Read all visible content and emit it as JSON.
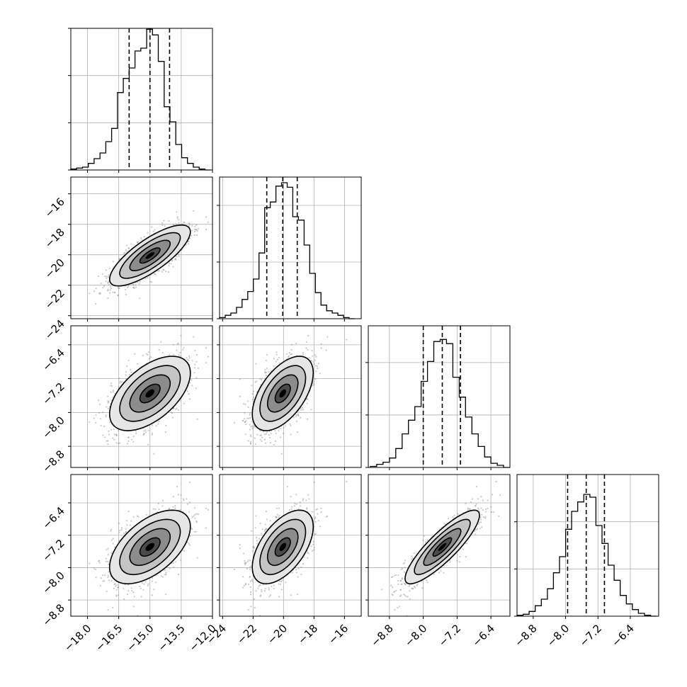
{
  "chart_data": {
    "type": "corner",
    "title": "",
    "grid": true,
    "parameters": [
      {
        "range": [
          -18.8,
          -12.0
        ],
        "ticks": [
          -18.0,
          -16.5,
          -15.0,
          -13.5,
          -12.0
        ],
        "tick_labels": [
          "−18.0",
          "−16.5",
          "−15.0",
          "−13.5",
          "−12.0"
        ],
        "quantiles": [
          -16.0,
          -15.0,
          -14.06
        ],
        "hist": {
          "bin_edges": [
            -18.8,
            -18.52,
            -18.24,
            -17.96,
            -17.68,
            -17.4,
            -17.12,
            -16.84,
            -16.56,
            -16.28,
            -16.0,
            -15.72,
            -15.44,
            -15.16,
            -14.88,
            -14.6,
            -14.32,
            -14.04,
            -13.76,
            -13.48,
            -13.2,
            -12.92,
            -12.64,
            -12.36,
            -12.08
          ],
          "counts": [
            1,
            2,
            3,
            7,
            12,
            18,
            30,
            44,
            82,
            97,
            108,
            126,
            129,
            149,
            143,
            115,
            67,
            51,
            27,
            13,
            7,
            3,
            1,
            0
          ],
          "ymax": 150,
          "yticks": [
            0,
            50,
            100,
            150
          ]
        }
      },
      {
        "range": [
          -24.2,
          -14.9
        ],
        "ticks": [
          -24,
          -22,
          -20,
          -18,
          -16
        ],
        "tick_labels": [
          "−24",
          "−22",
          "−20",
          "−18",
          "−16"
        ],
        "quantiles": [
          -21.1,
          -20.05,
          -19.1
        ],
        "hist": {
          "bin_edges": [
            -24.2,
            -23.83,
            -23.46,
            -23.09,
            -22.72,
            -22.35,
            -21.98,
            -21.61,
            -21.24,
            -20.87,
            -20.5,
            -20.13,
            -19.76,
            -19.39,
            -19.02,
            -18.65,
            -18.28,
            -17.91,
            -17.54,
            -17.17,
            -16.8,
            -16.43,
            -16.06,
            -15.69,
            -15.32
          ],
          "counts": [
            1,
            3,
            5,
            10,
            17,
            24,
            35,
            58,
            98,
            103,
            117,
            120,
            116,
            90,
            87,
            65,
            40,
            23,
            12,
            7,
            5,
            3,
            1,
            0
          ],
          "ymax": 125,
          "yticks": [
            0,
            50,
            100
          ]
        }
      },
      {
        "range": [
          -9.3,
          -5.95
        ],
        "ticks": [
          -8.8,
          -8.0,
          -7.2,
          -6.4
        ],
        "tick_labels": [
          "−8.8",
          "−8.0",
          "−7.2",
          "−6.4"
        ],
        "quantiles": [
          -8.0,
          -7.55,
          -7.12
        ],
        "hist": {
          "bin_edges": [
            -9.25,
            -9.1,
            -8.95,
            -8.8,
            -8.65,
            -8.5,
            -8.35,
            -8.2,
            -8.05,
            -7.9,
            -7.75,
            -7.6,
            -7.45,
            -7.3,
            -7.15,
            -7.0,
            -6.85,
            -6.7,
            -6.55,
            -6.4,
            -6.25,
            -6.1,
            -5.95
          ],
          "counts": [
            1,
            3,
            5,
            9,
            18,
            32,
            45,
            58,
            82,
            101,
            120,
            122,
            118,
            86,
            67,
            48,
            32,
            20,
            10,
            4,
            2,
            0
          ],
          "ymax": 135,
          "yticks": [
            0,
            50,
            100
          ]
        }
      },
      {
        "range": [
          -9.2,
          -5.7
        ],
        "ticks": [
          -8.8,
          -8.0,
          -7.2,
          -6.4
        ],
        "tick_labels": [
          "−8.8",
          "−8.0",
          "−7.2",
          "−6.4"
        ],
        "quantiles": [
          -7.95,
          -7.49,
          -7.04
        ],
        "hist": {
          "bin_edges": [
            -9.2,
            -9.05,
            -8.9,
            -8.75,
            -8.6,
            -8.45,
            -8.3,
            -8.15,
            -8.0,
            -7.85,
            -7.7,
            -7.55,
            -7.4,
            -7.25,
            -7.1,
            -6.95,
            -6.8,
            -6.65,
            -6.5,
            -6.35,
            -6.2,
            -6.05,
            -5.9,
            -5.75
          ],
          "counts": [
            1,
            2,
            5,
            11,
            18,
            29,
            46,
            63,
            92,
            111,
            121,
            129,
            126,
            96,
            77,
            54,
            38,
            22,
            13,
            7,
            3,
            1,
            0
          ],
          "ymax": 150,
          "yticks": [
            0,
            50,
            100
          ]
        }
      }
    ],
    "correlations": [
      [
        1.0,
        0.78,
        0.55,
        0.55
      ],
      [
        0.78,
        1.0,
        0.55,
        0.55
      ],
      [
        0.55,
        0.55,
        1.0,
        0.86
      ],
      [
        0.55,
        0.55,
        0.86,
        1.0
      ]
    ],
    "contour_levels_sigma": [
      0.5,
      1.0,
      1.5,
      2.0
    ],
    "n_scatter_points": 1200,
    "colors": {
      "hist_line": "#000000",
      "contour": "#000000",
      "scatter": "#888888",
      "density": "#000000",
      "grid": "#b0b0b0"
    }
  }
}
